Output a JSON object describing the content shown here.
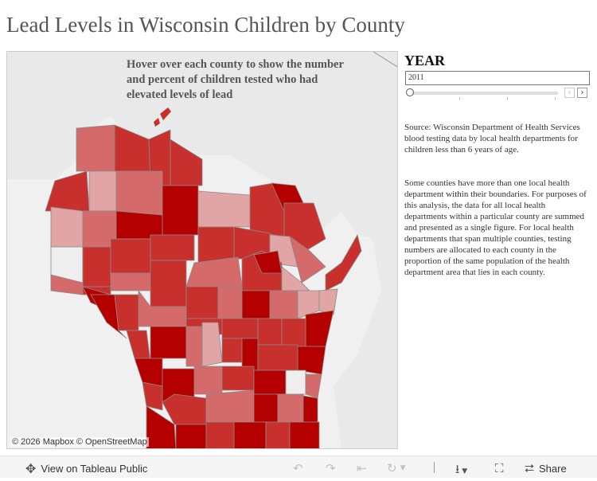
{
  "title": "Lead Levels in Wisconsin Children by County",
  "map": {
    "hover_note": "Hover over each county to show the number and percent of children tested who had elevated levels of lead",
    "attribution": "© 2026 Mapbox © OpenStreetMap",
    "colors": {
      "dark": "#b50000",
      "high": "#c7302c",
      "mid": "#d56a6a",
      "low": "#e2a5a5",
      "none": "#eeeeee",
      "water": "#e8e8e8",
      "land": "#f0f0f0"
    }
  },
  "filter": {
    "title": "YEAR",
    "selected": "2011"
  },
  "source_text": "Source: Wisconsin Department of Health Services blood testing data by local health departments for children less than 6 years of age.",
  "note_text": "Some counties have more than one local health department within their boundaries. For purposes of this analysis, the data for all local health departments within a particular county are summed and presented as a single figure. For local health departments that span multiple counties, testing numbers are allocated to each county in the proportion of the same population of the health department area that lies in each county.",
  "toolbar": {
    "view_label": "View on Tableau Public",
    "share_label": "Share",
    "icons": [
      "tableau-logo-icon",
      "undo-icon",
      "redo-icon",
      "revert-icon",
      "refresh-icon",
      "download-icon",
      "fullscreen-icon",
      "share-icon"
    ]
  }
}
